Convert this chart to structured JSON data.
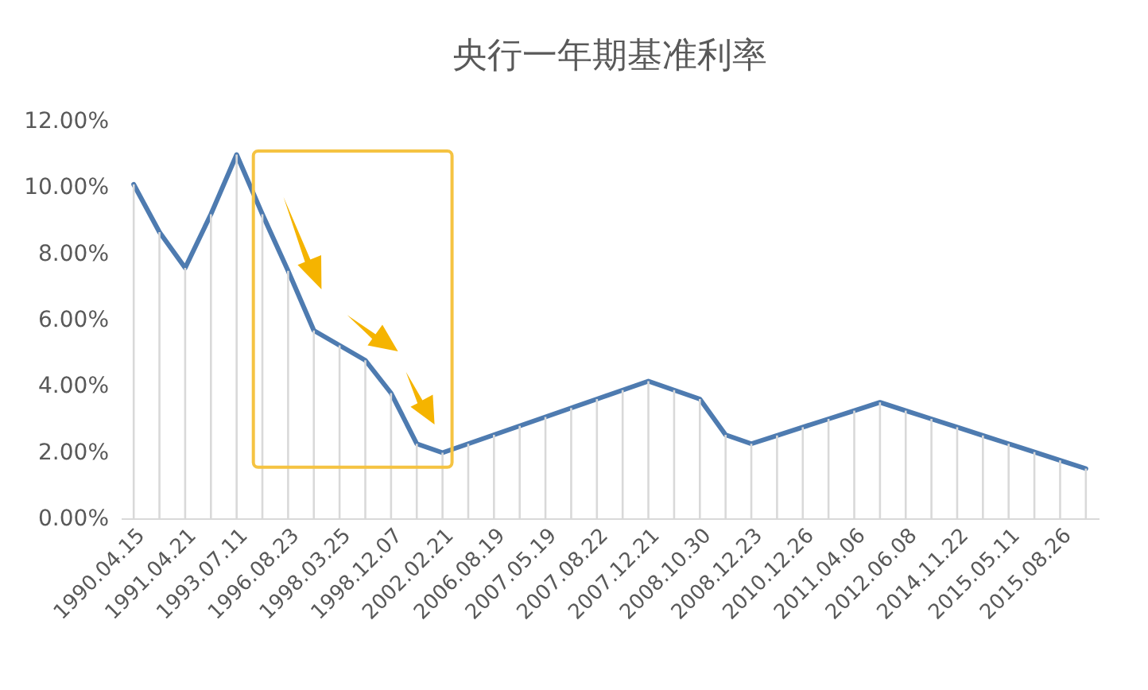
{
  "chart_data": {
    "type": "line",
    "title": "央行一年期基准利率",
    "categories": [
      "1990.04.15",
      null,
      "1991.04.21",
      null,
      "1993.07.11",
      null,
      "1996.08.23",
      null,
      "1998.03.25",
      null,
      "1998.12.07",
      null,
      "2002.02.21",
      null,
      "2006.08.19",
      null,
      "2007.05.19",
      null,
      "2007.08.22",
      null,
      "2007.12.21",
      null,
      "2008.10.30",
      null,
      "2008.12.23",
      null,
      "2010.12.26",
      null,
      "2011.04.06",
      null,
      "2012.06.08",
      null,
      "2014.11.22",
      null,
      "2015.05.11",
      null,
      "2015.08.26",
      null
    ],
    "series": [
      {
        "color": "#4e7bb0",
        "values": [
          10.08,
          8.64,
          7.56,
          9.18,
          10.98,
          9.18,
          7.47,
          5.67,
          5.22,
          4.77,
          3.78,
          2.25,
          1.98,
          2.25,
          2.52,
          2.79,
          3.06,
          3.33,
          3.6,
          3.87,
          4.14,
          3.87,
          3.6,
          2.52,
          2.25,
          2.5,
          2.75,
          3.0,
          3.25,
          3.5,
          3.25,
          3.0,
          2.75,
          2.5,
          2.25,
          2.0,
          1.75,
          1.5
        ]
      }
    ],
    "ylim": [
      0,
      12
    ],
    "yticks": [
      {
        "value": 0,
        "label": "0.00%"
      },
      {
        "value": 2,
        "label": "2.00%"
      },
      {
        "value": 4,
        "label": "4.00%"
      },
      {
        "value": 6,
        "label": "6.00%"
      },
      {
        "value": 8,
        "label": "8.00%"
      },
      {
        "value": 10,
        "label": "10.00%"
      },
      {
        "value": 12,
        "label": "12.00%"
      }
    ],
    "grid": false,
    "marker": "none",
    "line_style": "solid"
  }
}
